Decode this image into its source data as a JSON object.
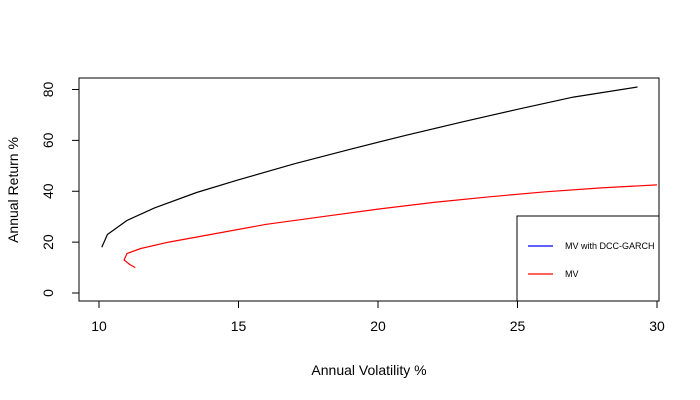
{
  "chart_data": {
    "type": "line",
    "title": "",
    "xlabel": "Annual Volatility %",
    "ylabel": "Annual Return %",
    "xlim": [
      10,
      30
    ],
    "ylim": [
      0,
      80
    ],
    "xticks": [
      "10",
      "15",
      "20",
      "25",
      "30"
    ],
    "yticks": [
      "0",
      "20",
      "40",
      "60",
      "80"
    ],
    "grid": false,
    "legend_position": "bottom-right",
    "legend": [
      {
        "label": "MV with DCC-GARCH",
        "color": "#0000ff"
      },
      {
        "label": "MV",
        "color": "#ff0000"
      }
    ],
    "series": [
      {
        "color": "#000000",
        "x": [
          10.1,
          10.3,
          11.0,
          12.0,
          13.5,
          15.0,
          17.0,
          19.0,
          21.0,
          23.0,
          25.0,
          27.0,
          29.3
        ],
        "y": [
          18,
          23,
          28.5,
          33.5,
          39.5,
          44.5,
          50.8,
          56.5,
          62,
          67.2,
          72.2,
          77,
          81
        ]
      },
      {
        "color": "#ff0000",
        "x": [
          11.3,
          11.1,
          10.9,
          11.0,
          11.5,
          12.5,
          14.0,
          16.0,
          18.0,
          20.0,
          22.0,
          24.0,
          26.0,
          28.0,
          30.0
        ],
        "y": [
          10,
          11.2,
          13,
          15.5,
          17.5,
          20,
          23,
          27,
          30,
          33,
          35.6,
          37.8,
          39.8,
          41.3,
          42.5
        ]
      }
    ]
  }
}
